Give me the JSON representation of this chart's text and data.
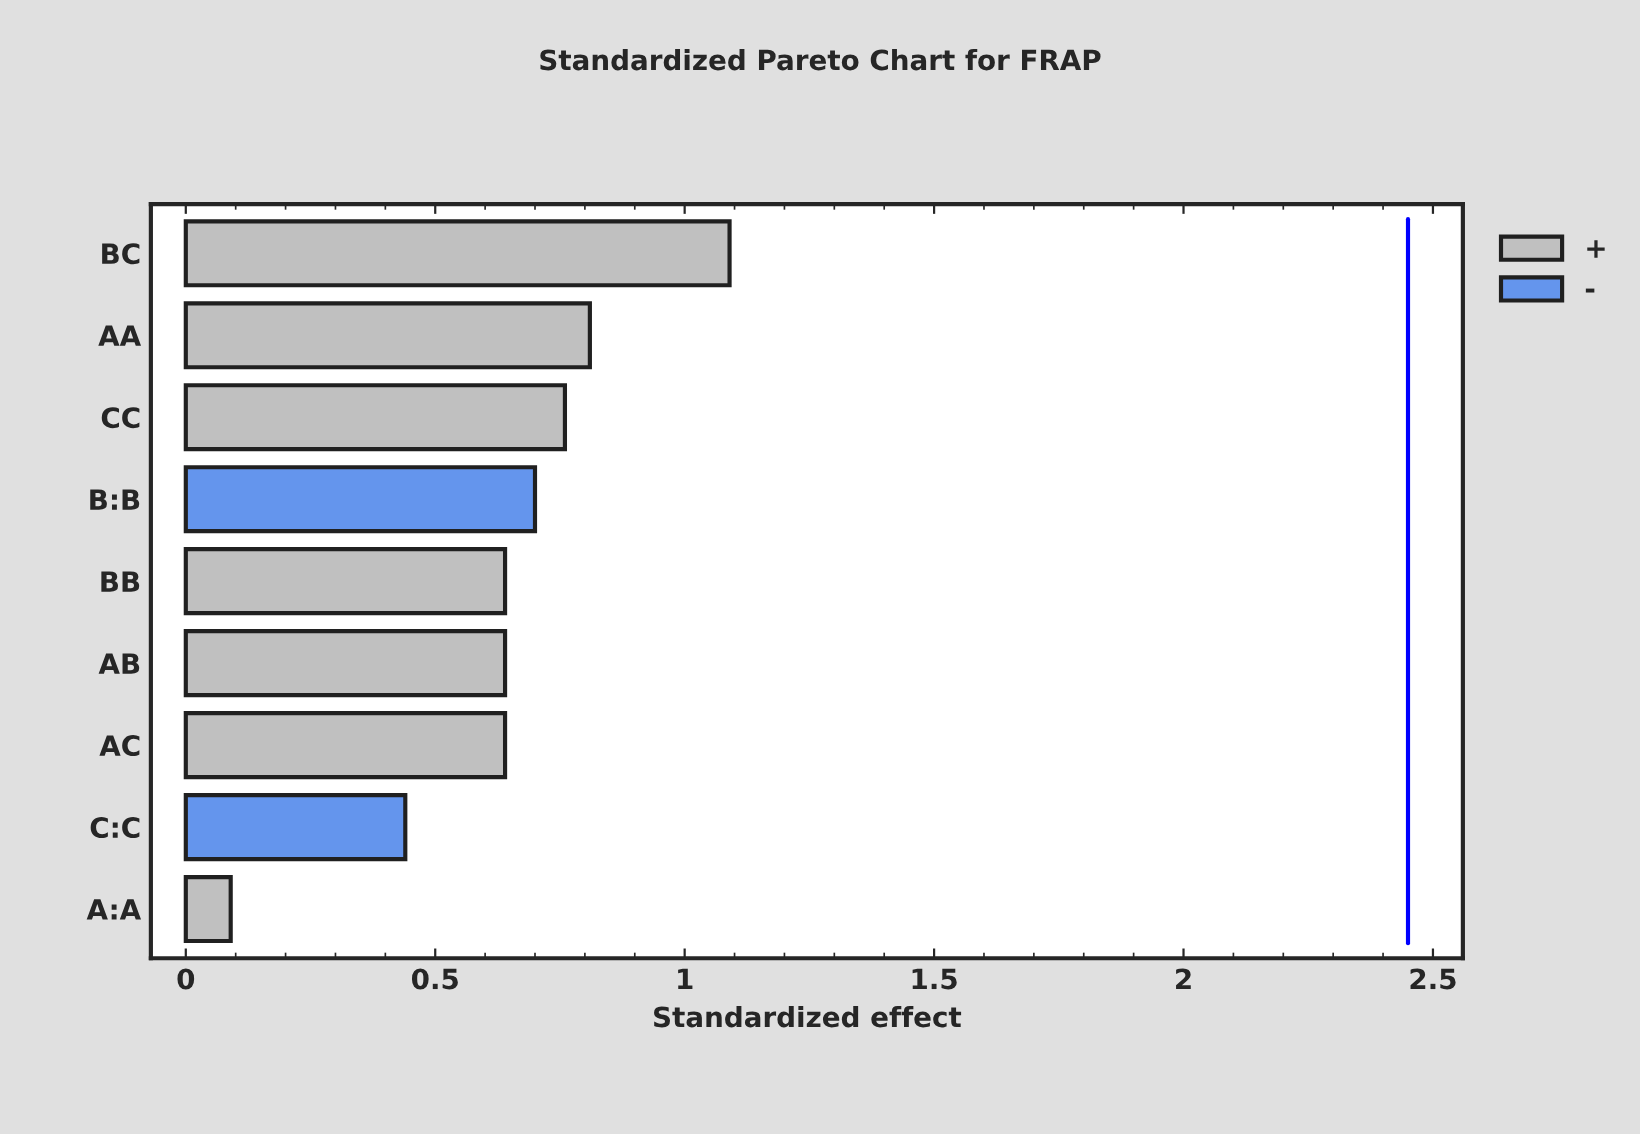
{
  "chart_data": {
    "type": "bar",
    "orientation": "horizontal",
    "title": "Standardized Pareto Chart for FRAP",
    "xlabel": "Standardized effect",
    "categories": [
      "BC",
      "AA",
      "CC",
      "B:B",
      "BB",
      "AB",
      "AC",
      "C:C",
      "A:A"
    ],
    "series": [
      {
        "name": "+",
        "color": "#c0c0c0",
        "values": [
          1.09,
          0.81,
          0.76,
          null,
          0.64,
          0.64,
          0.64,
          null,
          0.09
        ]
      },
      {
        "name": "-",
        "color": "#6495ed",
        "values": [
          null,
          null,
          null,
          0.7,
          null,
          null,
          null,
          0.44,
          null
        ]
      }
    ],
    "xlim": [
      -0.07,
      2.56
    ],
    "xticks": [
      0,
      0.5,
      1,
      1.5,
      2,
      2.5
    ],
    "ref_lines": [
      {
        "axis": "x",
        "value": 2.45,
        "color": "#0000ff"
      }
    ],
    "legend": "top right",
    "grid": false
  }
}
